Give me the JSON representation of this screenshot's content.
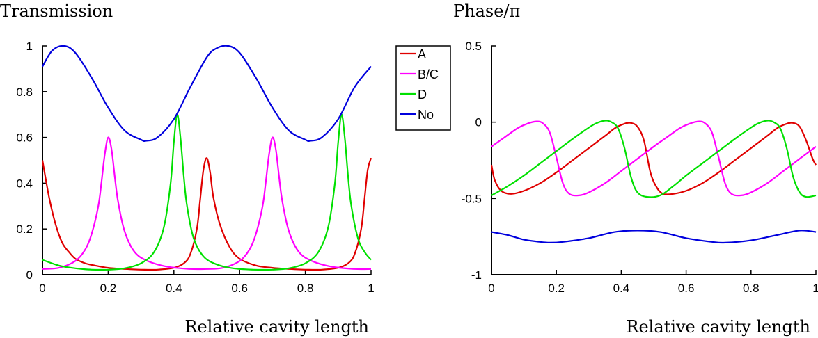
{
  "chart_data": [
    {
      "type": "line",
      "title": "Transmission",
      "xlabel": "Relative cavity length",
      "ylabel": "",
      "xlim": [
        0,
        1
      ],
      "ylim": [
        0,
        1
      ],
      "xticks": [
        0,
        0.2,
        0.4,
        0.6,
        0.8,
        1
      ],
      "xtick_labels": [
        "0",
        "0.2",
        "0.4",
        "0.6",
        "0.8",
        "1"
      ],
      "yticks": [
        0,
        0.2,
        0.4,
        0.6,
        0.8,
        1
      ],
      "ytick_labels": [
        "0",
        "0.2",
        "0.4",
        "0.6",
        "0.8",
        "1"
      ],
      "grid": false,
      "series": [
        {
          "name": "A",
          "color": "#e00000",
          "x": [
            0,
            0.02,
            0.04,
            0.06,
            0.08,
            0.1,
            0.13,
            0.16,
            0.2,
            0.25,
            0.3,
            0.35,
            0.4,
            0.43,
            0.45,
            0.47,
            0.48,
            0.49,
            0.5,
            0.51,
            0.52,
            0.54,
            0.57,
            0.6,
            0.65,
            0.7,
            0.75,
            0.8,
            0.85,
            0.9,
            0.93,
            0.95,
            0.97,
            0.98,
            0.99,
            1.0
          ],
          "y": [
            0.5,
            0.34,
            0.22,
            0.14,
            0.1,
            0.07,
            0.05,
            0.04,
            0.03,
            0.025,
            0.022,
            0.022,
            0.03,
            0.05,
            0.09,
            0.2,
            0.33,
            0.46,
            0.51,
            0.45,
            0.34,
            0.22,
            0.12,
            0.07,
            0.04,
            0.03,
            0.025,
            0.022,
            0.022,
            0.03,
            0.05,
            0.09,
            0.2,
            0.33,
            0.46,
            0.51
          ]
        },
        {
          "name": "B/C",
          "color": "#ff00ff",
          "x": [
            0,
            0.05,
            0.1,
            0.13,
            0.15,
            0.17,
            0.18,
            0.19,
            0.2,
            0.21,
            0.22,
            0.23,
            0.25,
            0.28,
            0.32,
            0.38,
            0.45,
            0.5,
            0.55,
            0.6,
            0.63,
            0.65,
            0.67,
            0.68,
            0.69,
            0.7,
            0.71,
            0.72,
            0.73,
            0.75,
            0.78,
            0.82,
            0.88,
            0.95,
            1.0
          ],
          "y": [
            0.025,
            0.03,
            0.06,
            0.11,
            0.18,
            0.3,
            0.41,
            0.53,
            0.6,
            0.55,
            0.43,
            0.32,
            0.19,
            0.1,
            0.06,
            0.035,
            0.025,
            0.025,
            0.03,
            0.06,
            0.11,
            0.18,
            0.3,
            0.41,
            0.53,
            0.6,
            0.55,
            0.43,
            0.32,
            0.19,
            0.1,
            0.06,
            0.035,
            0.025,
            0.025
          ]
        },
        {
          "name": "D",
          "color": "#00e000",
          "x": [
            0,
            0.05,
            0.1,
            0.15,
            0.2,
            0.25,
            0.3,
            0.34,
            0.37,
            0.39,
            0.4,
            0.41,
            0.42,
            0.43,
            0.44,
            0.46,
            0.49,
            0.53,
            0.58,
            0.64,
            0.7,
            0.75,
            0.8,
            0.84,
            0.87,
            0.89,
            0.9,
            0.91,
            0.92,
            0.93,
            0.94,
            0.96,
            0.98,
            1.0
          ],
          "y": [
            0.065,
            0.04,
            0.028,
            0.022,
            0.022,
            0.028,
            0.05,
            0.1,
            0.21,
            0.4,
            0.58,
            0.7,
            0.6,
            0.43,
            0.3,
            0.16,
            0.08,
            0.045,
            0.028,
            0.022,
            0.022,
            0.028,
            0.05,
            0.1,
            0.21,
            0.4,
            0.58,
            0.7,
            0.6,
            0.43,
            0.3,
            0.16,
            0.1,
            0.065
          ]
        },
        {
          "name": "No",
          "color": "#0000dd",
          "x": [
            0,
            0.03,
            0.065,
            0.1,
            0.15,
            0.2,
            0.25,
            0.3,
            0.315,
            0.35,
            0.4,
            0.45,
            0.5,
            0.53,
            0.565,
            0.6,
            0.65,
            0.7,
            0.75,
            0.8,
            0.815,
            0.85,
            0.9,
            0.95,
            1.0
          ],
          "y": [
            0.91,
            0.98,
            1.0,
            0.97,
            0.86,
            0.73,
            0.63,
            0.59,
            0.585,
            0.6,
            0.68,
            0.82,
            0.95,
            0.99,
            1.0,
            0.97,
            0.86,
            0.73,
            0.63,
            0.59,
            0.585,
            0.6,
            0.68,
            0.82,
            0.91
          ]
        }
      ],
      "legend": {
        "placement": "top-right, outside plot",
        "entries": [
          "A",
          "B/C",
          "D",
          "No"
        ]
      }
    },
    {
      "type": "line",
      "title": "Phase/π",
      "xlabel": "Relative cavity length",
      "ylabel": "",
      "xlim": [
        0,
        1
      ],
      "ylim": [
        -1,
        0.5
      ],
      "xticks": [
        0,
        0.2,
        0.4,
        0.6,
        0.8,
        1
      ],
      "xtick_labels": [
        "0",
        "0.2",
        "0.4",
        "0.6",
        "0.8",
        "1"
      ],
      "yticks": [
        -1,
        -0.5,
        0,
        0.5
      ],
      "ytick_labels": [
        "-1",
        "-0.5",
        "0",
        "0.5"
      ],
      "grid": false,
      "series": [
        {
          "name": "A",
          "color": "#e00000",
          "x": [
            0,
            0.01,
            0.03,
            0.06,
            0.1,
            0.15,
            0.2,
            0.25,
            0.3,
            0.35,
            0.38,
            0.41,
            0.43,
            0.45,
            0.47,
            0.49,
            0.51,
            0.53,
            0.56,
            0.6,
            0.65,
            0.7,
            0.75,
            0.8,
            0.85,
            0.88,
            0.91,
            0.93,
            0.95,
            0.97,
            0.99,
            1.0
          ],
          "y": [
            -0.28,
            -0.38,
            -0.45,
            -0.47,
            -0.45,
            -0.4,
            -0.33,
            -0.25,
            -0.17,
            -0.09,
            -0.04,
            -0.01,
            -0.005,
            -0.03,
            -0.12,
            -0.33,
            -0.43,
            -0.47,
            -0.47,
            -0.45,
            -0.4,
            -0.33,
            -0.25,
            -0.17,
            -0.09,
            -0.04,
            -0.01,
            -0.005,
            -0.03,
            -0.12,
            -0.24,
            -0.28
          ]
        },
        {
          "name": "B/C",
          "color": "#ff00ff",
          "x": [
            0,
            0.04,
            0.08,
            0.11,
            0.14,
            0.16,
            0.18,
            0.2,
            0.22,
            0.24,
            0.27,
            0.3,
            0.35,
            0.4,
            0.45,
            0.5,
            0.54,
            0.58,
            0.61,
            0.64,
            0.66,
            0.68,
            0.7,
            0.72,
            0.74,
            0.77,
            0.8,
            0.85,
            0.9,
            0.95,
            1.0
          ],
          "y": [
            -0.16,
            -0.1,
            -0.04,
            -0.01,
            0.005,
            -0.01,
            -0.07,
            -0.23,
            -0.4,
            -0.47,
            -0.48,
            -0.46,
            -0.4,
            -0.32,
            -0.24,
            -0.16,
            -0.1,
            -0.04,
            -0.01,
            0.005,
            -0.01,
            -0.07,
            -0.23,
            -0.4,
            -0.47,
            -0.48,
            -0.46,
            -0.4,
            -0.32,
            -0.24,
            -0.16
          ]
        },
        {
          "name": "D",
          "color": "#00e000",
          "x": [
            0,
            0.05,
            0.1,
            0.15,
            0.2,
            0.25,
            0.29,
            0.32,
            0.35,
            0.37,
            0.39,
            0.41,
            0.43,
            0.45,
            0.48,
            0.52,
            0.56,
            0.6,
            0.65,
            0.7,
            0.75,
            0.79,
            0.82,
            0.85,
            0.87,
            0.89,
            0.91,
            0.93,
            0.95,
            0.97,
            1.0
          ],
          "y": [
            -0.48,
            -0.42,
            -0.35,
            -0.27,
            -0.19,
            -0.11,
            -0.05,
            -0.01,
            0.01,
            0.0,
            -0.04,
            -0.17,
            -0.36,
            -0.46,
            -0.49,
            -0.48,
            -0.42,
            -0.35,
            -0.27,
            -0.19,
            -0.11,
            -0.05,
            -0.01,
            0.01,
            0.0,
            -0.04,
            -0.17,
            -0.36,
            -0.46,
            -0.49,
            -0.48
          ]
        },
        {
          "name": "No",
          "color": "#0000dd",
          "x": [
            0,
            0.05,
            0.1,
            0.15,
            0.18,
            0.22,
            0.3,
            0.38,
            0.45,
            0.52,
            0.6,
            0.68,
            0.72,
            0.8,
            0.88,
            0.95,
            1.0
          ],
          "y": [
            -0.72,
            -0.74,
            -0.77,
            -0.785,
            -0.79,
            -0.785,
            -0.76,
            -0.72,
            -0.71,
            -0.72,
            -0.76,
            -0.785,
            -0.79,
            -0.775,
            -0.74,
            -0.71,
            -0.72
          ]
        }
      ]
    }
  ]
}
